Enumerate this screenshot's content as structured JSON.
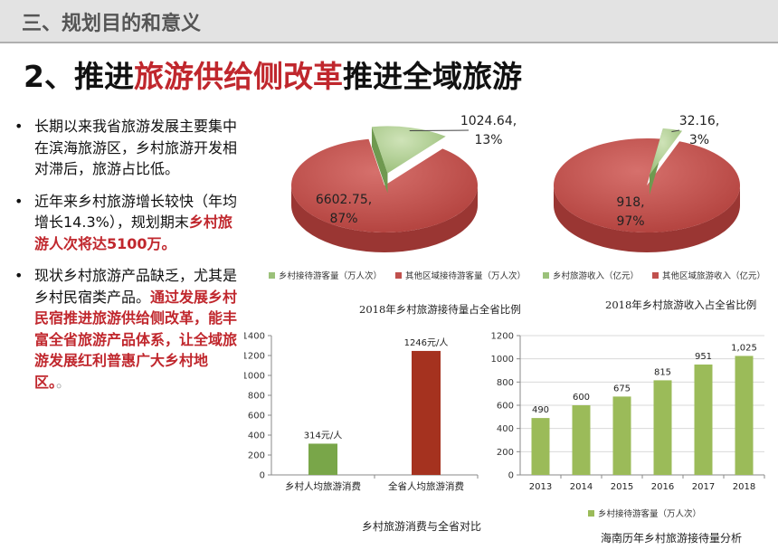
{
  "header": {
    "section_title": "三、规划目的和意义",
    "slide_title_prefix": "2、推进",
    "slide_title_highlight": "旅游供给侧改革",
    "slide_title_suffix": "推进全域旅游"
  },
  "bullets": [
    {
      "text": "长期以来我省旅游发展主要集中在滨海旅游区，乡村旅游开发相对滞后，旅游占比低。",
      "highlight": "",
      "tail": ""
    },
    {
      "text": "近年来乡村旅游增长较快（年均增长14.3%），规划期末",
      "highlight": "乡村旅游人次将达5100万。",
      "tail": ""
    },
    {
      "text": "现状乡村旅游产品缺乏，尤其是乡村民宿类产品。",
      "highlight": "通过发展乡村民宿推进旅游供给侧改革，能丰富全省旅游产品体系，让全域旅游发展红利普惠广大乡村地区。",
      "tail": "。"
    }
  ],
  "colors": {
    "accent": "#c0272d",
    "pie_green": "#9bc17a",
    "pie_red": "#c0504d",
    "bar_green": "#79a649",
    "bar_red": "#a5321f",
    "bar_lightgreen": "#9bbb59"
  },
  "chart_data": [
    {
      "type": "pie",
      "title": "2018年乡村旅游接待量占全省比例",
      "slices": [
        {
          "name": "乡村接待游客量（万人次）",
          "value": 1024.64,
          "label_value": "1024.64,",
          "label_pct": "13%"
        },
        {
          "name": "其他区域接待游客量（万人次）",
          "value": 6602.75,
          "label_value": "6602.75,",
          "label_pct": "87%"
        }
      ]
    },
    {
      "type": "pie",
      "title": "2018年乡村旅游收入占全省比例",
      "slices": [
        {
          "name": "乡村旅游收入（亿元）",
          "value": 32.16,
          "label_value": "32.16,",
          "label_pct": "3%"
        },
        {
          "name": "其他区域旅游收入（亿元）",
          "value": 918,
          "label_value": "918,",
          "label_pct": "97%"
        }
      ]
    },
    {
      "type": "bar",
      "title": "乡村旅游消费与全省对比",
      "categories": [
        "乡村人均旅游消费",
        "全省人均旅游消费"
      ],
      "values": [
        314,
        1246
      ],
      "data_labels": [
        "314元/人",
        "1246元/人"
      ],
      "ylim": [
        0,
        1400
      ],
      "yticks": [
        "0",
        "200",
        "400",
        "600",
        "800",
        "1000",
        "1200",
        "1400"
      ]
    },
    {
      "type": "bar",
      "title": "海南历年乡村旅游接待量分析",
      "categories": [
        "2013",
        "2014",
        "2015",
        "2016",
        "2017",
        "2018"
      ],
      "values": [
        490,
        600,
        675,
        815,
        951,
        1025
      ],
      "data_labels": [
        "490",
        "600",
        "675",
        "815",
        "951",
        "1,025"
      ],
      "series_name": "乡村接待游客量（万人次）",
      "ylim": [
        0,
        1200
      ],
      "yticks": [
        "0",
        "200",
        "400",
        "600",
        "800",
        "1000",
        "1200"
      ]
    }
  ]
}
